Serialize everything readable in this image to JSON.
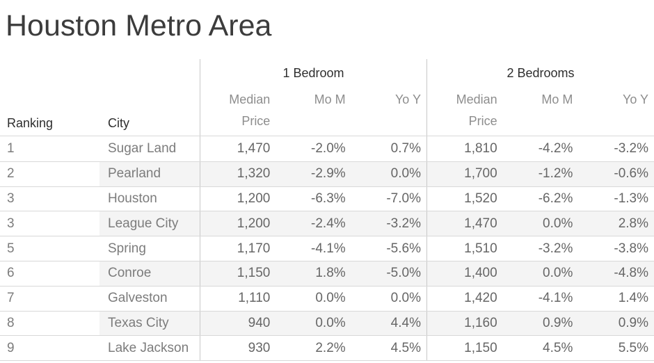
{
  "title": "Houston Metro Area",
  "colors": {
    "title_text": "#3c3c3c",
    "header_text": "#2e2e2e",
    "subheader_text": "#8d8d8d",
    "body_text": "#6e6e6e",
    "row_band": "#f4f4f4",
    "row_border": "#d8d8d8",
    "pane_divider": "#c8c8c8"
  },
  "table": {
    "ranking_header": "Ranking",
    "city_header": "City",
    "groups": [
      {
        "label": "1 Bedroom",
        "columns": [
          "Median Price",
          "Mo M",
          "Yo Y"
        ]
      },
      {
        "label": "2 Bedrooms",
        "columns": [
          "Median Price",
          "Mo M",
          "Yo Y"
        ]
      }
    ],
    "rows": [
      {
        "ranking": "1",
        "city": "Sugar Land",
        "values": [
          "1,470",
          "-2.0%",
          "0.7%",
          "1,810",
          "-4.2%",
          "-3.2%"
        ]
      },
      {
        "ranking": "2",
        "city": "Pearland",
        "values": [
          "1,320",
          "-2.9%",
          "0.0%",
          "1,700",
          "-1.2%",
          "-0.6%"
        ]
      },
      {
        "ranking": "3",
        "city": "Houston",
        "values": [
          "1,200",
          "-6.3%",
          "-7.0%",
          "1,520",
          "-6.2%",
          "-1.3%"
        ]
      },
      {
        "ranking": "3",
        "city": "League City",
        "values": [
          "1,200",
          "-2.4%",
          "-3.2%",
          "1,470",
          "0.0%",
          "2.8%"
        ]
      },
      {
        "ranking": "5",
        "city": "Spring",
        "values": [
          "1,170",
          "-4.1%",
          "-5.6%",
          "1,510",
          "-3.2%",
          "-3.8%"
        ]
      },
      {
        "ranking": "6",
        "city": "Conroe",
        "values": [
          "1,150",
          "1.8%",
          "-5.0%",
          "1,400",
          "0.0%",
          "-4.8%"
        ]
      },
      {
        "ranking": "7",
        "city": "Galveston",
        "values": [
          "1,110",
          "0.0%",
          "0.0%",
          "1,420",
          "-4.1%",
          "1.4%"
        ]
      },
      {
        "ranking": "8",
        "city": "Texas City",
        "values": [
          "940",
          "0.0%",
          "4.4%",
          "1,160",
          "0.9%",
          "0.9%"
        ]
      },
      {
        "ranking": "9",
        "city": "Lake Jackson",
        "values": [
          "930",
          "2.2%",
          "4.5%",
          "1,150",
          "4.5%",
          "5.5%"
        ]
      }
    ]
  },
  "chart_data": {
    "type": "table",
    "title": "Houston Metro Area",
    "column_groups": [
      "1 Bedroom",
      "2 Bedrooms"
    ],
    "columns": [
      "Ranking",
      "City",
      "1BR Median Price",
      "1BR Mo M",
      "1BR Yo Y",
      "2BR Median Price",
      "2BR Mo M",
      "2BR Yo Y"
    ],
    "rows": [
      [
        1,
        "Sugar Land",
        1470,
        "-2.0%",
        "0.7%",
        1810,
        "-4.2%",
        "-3.2%"
      ],
      [
        2,
        "Pearland",
        1320,
        "-2.9%",
        "0.0%",
        1700,
        "-1.2%",
        "-0.6%"
      ],
      [
        3,
        "Houston",
        1200,
        "-6.3%",
        "-7.0%",
        1520,
        "-6.2%",
        "-1.3%"
      ],
      [
        3,
        "League City",
        1200,
        "-2.4%",
        "-3.2%",
        1470,
        "0.0%",
        "2.8%"
      ],
      [
        5,
        "Spring",
        1170,
        "-4.1%",
        "-5.6%",
        1510,
        "-3.2%",
        "-3.8%"
      ],
      [
        6,
        "Conroe",
        1150,
        "1.8%",
        "-5.0%",
        1400,
        "0.0%",
        "-4.8%"
      ],
      [
        7,
        "Galveston",
        1110,
        "0.0%",
        "0.0%",
        1420,
        "-4.1%",
        "1.4%"
      ],
      [
        8,
        "Texas City",
        940,
        "0.0%",
        "4.4%",
        1160,
        "0.9%",
        "0.9%"
      ],
      [
        9,
        "Lake Jackson",
        930,
        "2.2%",
        "4.5%",
        1150,
        "4.5%",
        "5.5%"
      ]
    ],
    "layout": {
      "zebra_striping": true,
      "banded_rows": [
        2,
        4,
        6,
        8
      ],
      "ranking_ties": true
    }
  }
}
